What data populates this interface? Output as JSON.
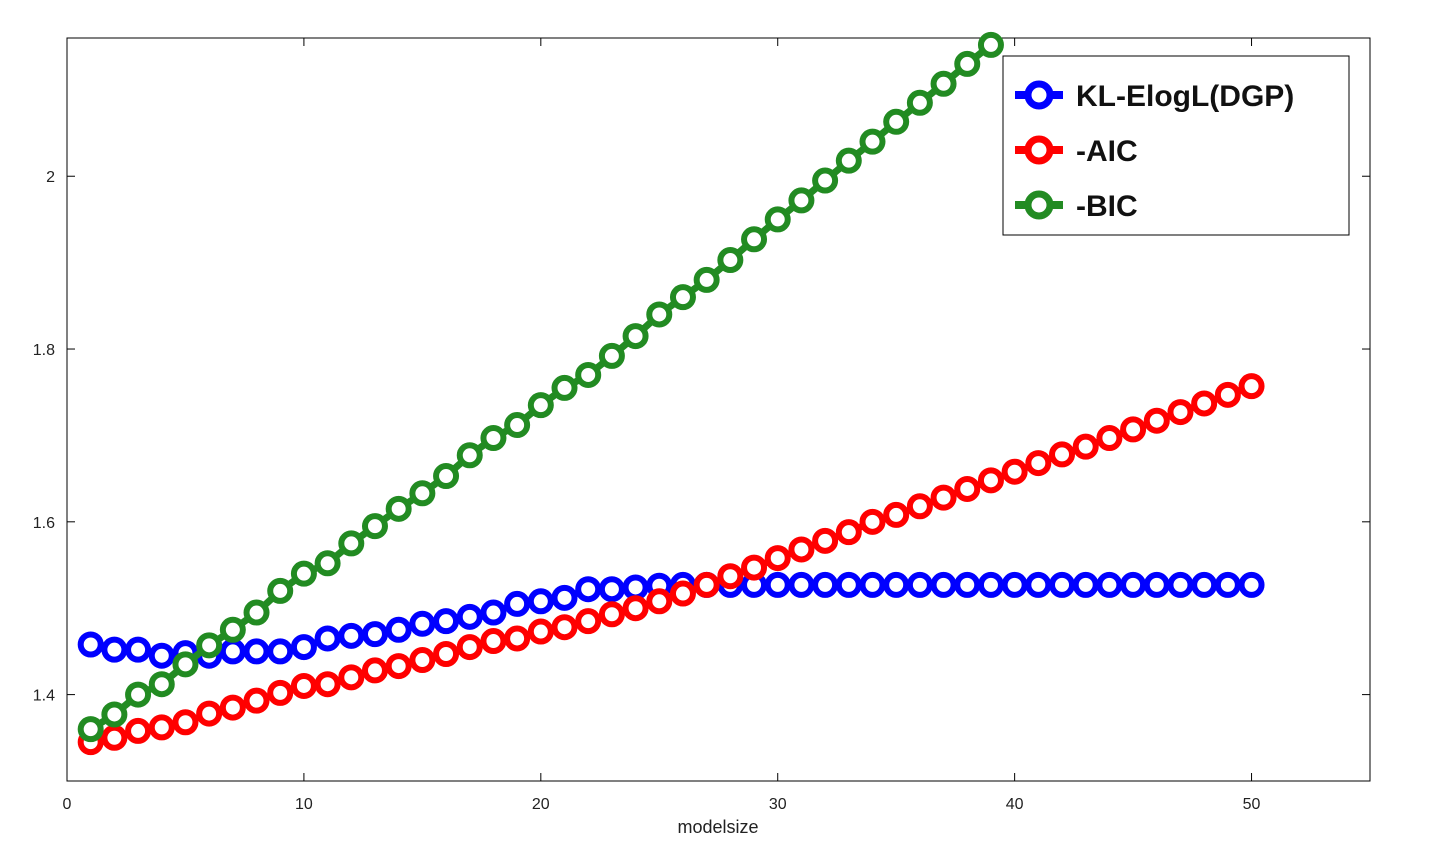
{
  "chart_data": {
    "type": "line",
    "title": "",
    "xlabel": "modelsize",
    "ylabel": "",
    "xlim": [
      0,
      55
    ],
    "ylim": [
      1.3,
      2.16
    ],
    "xticks": [
      0,
      10,
      20,
      30,
      40,
      50
    ],
    "yticks": [
      1.4,
      1.6,
      1.8,
      2
    ],
    "xtick_labels": [
      "0",
      "10",
      "20",
      "30",
      "40",
      "50"
    ],
    "ytick_labels": [
      "1.4",
      "1.6",
      "1.8",
      "2"
    ],
    "grid": false,
    "legend_position": "top-right",
    "series": [
      {
        "name": "KL-ElogL(DGP)",
        "color": "#0000ff",
        "marker": "circle",
        "x": [
          1,
          2,
          3,
          4,
          5,
          6,
          7,
          8,
          9,
          10,
          11,
          12,
          13,
          14,
          15,
          16,
          17,
          18,
          19,
          20,
          21,
          22,
          23,
          24,
          25,
          26,
          27,
          28,
          29,
          30,
          31,
          32,
          33,
          34,
          35,
          36,
          37,
          38,
          39,
          40,
          41,
          42,
          43,
          44,
          45,
          46,
          47,
          48,
          49,
          50
        ],
        "values": [
          1.458,
          1.452,
          1.452,
          1.445,
          1.448,
          1.445,
          1.45,
          1.45,
          1.45,
          1.455,
          1.465,
          1.468,
          1.47,
          1.475,
          1.482,
          1.485,
          1.49,
          1.495,
          1.505,
          1.508,
          1.512,
          1.522,
          1.522,
          1.524,
          1.526,
          1.527,
          1.527,
          1.527,
          1.527,
          1.527,
          1.527,
          1.527,
          1.527,
          1.527,
          1.527,
          1.527,
          1.527,
          1.527,
          1.527,
          1.527,
          1.527,
          1.527,
          1.527,
          1.527,
          1.527,
          1.527,
          1.527,
          1.527,
          1.527,
          1.527
        ]
      },
      {
        "name": "-AIC",
        "color": "#ff0000",
        "marker": "circle",
        "x": [
          1,
          2,
          3,
          4,
          5,
          6,
          7,
          8,
          9,
          10,
          11,
          12,
          13,
          14,
          15,
          16,
          17,
          18,
          19,
          20,
          21,
          22,
          23,
          24,
          25,
          26,
          27,
          28,
          29,
          30,
          31,
          32,
          33,
          34,
          35,
          36,
          37,
          38,
          39,
          40,
          41,
          42,
          43,
          44,
          45,
          46,
          47,
          48,
          49,
          50
        ],
        "values": [
          1.345,
          1.35,
          1.358,
          1.362,
          1.368,
          1.378,
          1.385,
          1.393,
          1.402,
          1.41,
          1.412,
          1.42,
          1.428,
          1.433,
          1.44,
          1.447,
          1.455,
          1.462,
          1.465,
          1.473,
          1.478,
          1.485,
          1.493,
          1.5,
          1.508,
          1.517,
          1.527,
          1.537,
          1.547,
          1.558,
          1.568,
          1.578,
          1.588,
          1.6,
          1.608,
          1.618,
          1.628,
          1.638,
          1.648,
          1.658,
          1.668,
          1.678,
          1.687,
          1.697,
          1.707,
          1.717,
          1.727,
          1.737,
          1.747,
          1.757
        ]
      },
      {
        "name": "-BIC",
        "color": "#228b22",
        "marker": "circle",
        "x": [
          1,
          2,
          3,
          4,
          5,
          6,
          7,
          8,
          9,
          10,
          11,
          12,
          13,
          14,
          15,
          16,
          17,
          18,
          19,
          20,
          21,
          22,
          23,
          24,
          25,
          26,
          27,
          28,
          29,
          30,
          31,
          32,
          33,
          34,
          35,
          36,
          37,
          38,
          39
        ],
        "values": [
          1.36,
          1.377,
          1.4,
          1.412,
          1.435,
          1.457,
          1.475,
          1.495,
          1.52,
          1.54,
          1.552,
          1.575,
          1.595,
          1.615,
          1.633,
          1.653,
          1.677,
          1.697,
          1.712,
          1.735,
          1.755,
          1.77,
          1.792,
          1.815,
          1.84,
          1.86,
          1.88,
          1.903,
          1.927,
          1.95,
          1.972,
          1.995,
          2.018,
          2.04,
          2.063,
          2.085,
          2.107,
          2.13,
          2.152
        ]
      }
    ]
  }
}
